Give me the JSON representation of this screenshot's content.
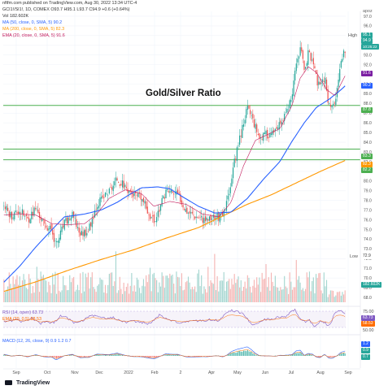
{
  "header": {
    "publish_line": "nftfm.com published on TradingView.com, Aug 30, 2022 13:34 UTC-4",
    "symbol_line": "GCI1!/SI1!, 1D, COMEX  O93.7  H95.1  L93.7  C94.9  +0.6 (+0.64%)",
    "vol_line": "Vol  182.602K",
    "ma50_line": "MA (50, close, 0, SMA, 5)  90.2",
    "ma200_line": "MA (200, close, 0, SMA, 5)  82.3",
    "ema20_line": "EMA (20, close, 0, SMA, 5)  91.6",
    "currency": "apoz"
  },
  "chart_data": {
    "type": "candlestick",
    "title": "Gold/Silver Ratio",
    "y_axis_ticks": [
      "97.0",
      "96.0",
      "95.0",
      "94.0",
      "93.0",
      "92.0",
      "91.0",
      "90.0",
      "89.0",
      "88.0",
      "87.0",
      "86.0",
      "85.0",
      "84.0",
      "83.0",
      "82.0",
      "81.0",
      "80.0",
      "79.0",
      "78.0",
      "77.0",
      "76.0",
      "75.0",
      "74.0",
      "73.0",
      "72.0",
      "71.0",
      "70.0",
      "69.0",
      "68.0"
    ],
    "ylim": [
      67.5,
      97.5
    ],
    "x_labels": [
      "Sep",
      "Oct",
      "Nov",
      "Dec",
      "2022",
      "Feb",
      "2",
      "Apr",
      "May",
      "Jun",
      "Jul",
      "Aug",
      "Sep"
    ],
    "horizontal_levels": [
      87.8,
      83.3,
      82.2
    ],
    "price_labels": {
      "high_label": "High",
      "high": "95.1",
      "last": "94.9",
      "countdown": "10:25:22",
      "ema20": "91.6",
      "ma50": "90.2",
      "level_top": "87.8",
      "level_mid": "83.3",
      "ma200": "82.3",
      "level_low": "82.2",
      "low_label": "Low",
      "low": "72.9",
      "vol": "182.602K"
    },
    "close_waypoints": [
      [
        0,
        77.5
      ],
      [
        10,
        76.4
      ],
      [
        20,
        77.0
      ],
      [
        30,
        76.0
      ],
      [
        40,
        77.2
      ],
      [
        50,
        75.5
      ],
      [
        60,
        74.9
      ],
      [
        65,
        73.3
      ],
      [
        75,
        75.6
      ],
      [
        85,
        76.4
      ],
      [
        95,
        74.5
      ],
      [
        105,
        75.0
      ],
      [
        115,
        77.6
      ],
      [
        130,
        78.9
      ],
      [
        140,
        80.2
      ],
      [
        150,
        79.4
      ],
      [
        160,
        78.5
      ],
      [
        170,
        78.2
      ],
      [
        180,
        76.5
      ],
      [
        186,
        75.8
      ],
      [
        200,
        79.0
      ],
      [
        215,
        78.6
      ],
      [
        225,
        77.0
      ],
      [
        235,
        76.5
      ],
      [
        250,
        76.0
      ],
      [
        260,
        76.4
      ],
      [
        270,
        76.2
      ],
      [
        275,
        77.8
      ],
      [
        282,
        81.0
      ],
      [
        288,
        83.5
      ],
      [
        295,
        86.0
      ],
      [
        300,
        87.5
      ],
      [
        305,
        86.8
      ],
      [
        315,
        84.5
      ],
      [
        325,
        84.8
      ],
      [
        335,
        85.0
      ],
      [
        345,
        86.5
      ],
      [
        355,
        88.5
      ],
      [
        360,
        92.0
      ],
      [
        365,
        93.8
      ],
      [
        370,
        91.5
      ],
      [
        375,
        93.2
      ],
      [
        380,
        92.5
      ],
      [
        385,
        90.5
      ],
      [
        390,
        89.5
      ],
      [
        395,
        90.8
      ],
      [
        400,
        88.0
      ],
      [
        405,
        87.6
      ],
      [
        410,
        89.0
      ],
      [
        415,
        92.0
      ],
      [
        420,
        93.5
      ],
      [
        425,
        94.9
      ]
    ],
    "ma50_waypoints": [
      [
        0,
        69.5
      ],
      [
        20,
        71.2
      ],
      [
        40,
        73.2
      ],
      [
        60,
        75.0
      ],
      [
        75,
        76.3
      ],
      [
        100,
        76.6
      ],
      [
        120,
        77.0
      ],
      [
        140,
        77.8
      ],
      [
        155,
        78.6
      ],
      [
        170,
        79.3
      ],
      [
        190,
        79.4
      ],
      [
        205,
        79.2
      ],
      [
        220,
        78.4
      ],
      [
        240,
        77.4
      ],
      [
        260,
        76.7
      ],
      [
        280,
        76.8
      ],
      [
        300,
        78.2
      ],
      [
        320,
        80.2
      ],
      [
        340,
        82.0
      ],
      [
        355,
        84.1
      ],
      [
        370,
        86.0
      ],
      [
        385,
        87.6
      ],
      [
        400,
        88.4
      ],
      [
        415,
        89.4
      ],
      [
        425,
        90.2
      ]
    ],
    "ema20_waypoints": [
      [
        0,
        76.5
      ],
      [
        20,
        76.6
      ],
      [
        40,
        76.5
      ],
      [
        60,
        75.6
      ],
      [
        80,
        75.5
      ],
      [
        100,
        75.6
      ],
      [
        115,
        76.6
      ],
      [
        130,
        78.2
      ],
      [
        150,
        79.1
      ],
      [
        170,
        78.7
      ],
      [
        185,
        77.4
      ],
      [
        205,
        77.9
      ],
      [
        225,
        77.6
      ],
      [
        245,
        76.6
      ],
      [
        265,
        76.3
      ],
      [
        280,
        77.8
      ],
      [
        295,
        81.5
      ],
      [
        310,
        84.2
      ],
      [
        325,
        84.8
      ],
      [
        340,
        85.4
      ],
      [
        355,
        87.8
      ],
      [
        365,
        90.6
      ],
      [
        375,
        91.8
      ],
      [
        385,
        91.2
      ],
      [
        398,
        89.4
      ],
      [
        408,
        88.8
      ],
      [
        418,
        90.5
      ],
      [
        425,
        91.6
      ]
    ],
    "ma200_waypoints": [
      [
        0,
        68.6
      ],
      [
        40,
        69.6
      ],
      [
        80,
        70.8
      ],
      [
        120,
        71.9
      ],
      [
        160,
        72.9
      ],
      [
        200,
        74.1
      ],
      [
        240,
        75.2
      ],
      [
        270,
        76.4
      ],
      [
        300,
        77.6
      ],
      [
        330,
        78.6
      ],
      [
        360,
        79.8
      ],
      [
        390,
        81.0
      ],
      [
        425,
        82.3
      ]
    ],
    "colors": {
      "up": "#26a69a",
      "down": "#ef5350",
      "ma50": "#2962ff",
      "ma200": "#ff9800",
      "ema20": "#c2185b",
      "levels": "#4caf50",
      "high_tag": "#26a69a",
      "last_tag": "#26a69a",
      "ema_tag": "#7b1fa2",
      "ma50_tag": "#2962ff",
      "ma200_tag": "#ff9800",
      "level_tag": "#4caf50",
      "rsi": "#7e57c2",
      "macd_line": "#2962ff",
      "signal_line": "#ff6d00"
    }
  },
  "indicators": {
    "rsi_label": "RSI (14, open)  63.73",
    "rsi_ema_label": "EMA (20, 0.5)  58.53",
    "rsi_axis": [
      "75.00",
      "50.00"
    ],
    "rsi_value_tag": "63.73",
    "rsi_ema_tag": "58.53",
    "macd_label": "MACD (12, 26, close, 9)  0.9  1.2  0.7",
    "macd_tags": [
      "1.2",
      "0.9",
      "0.7"
    ]
  },
  "footer": {
    "brand": "TradingView"
  }
}
